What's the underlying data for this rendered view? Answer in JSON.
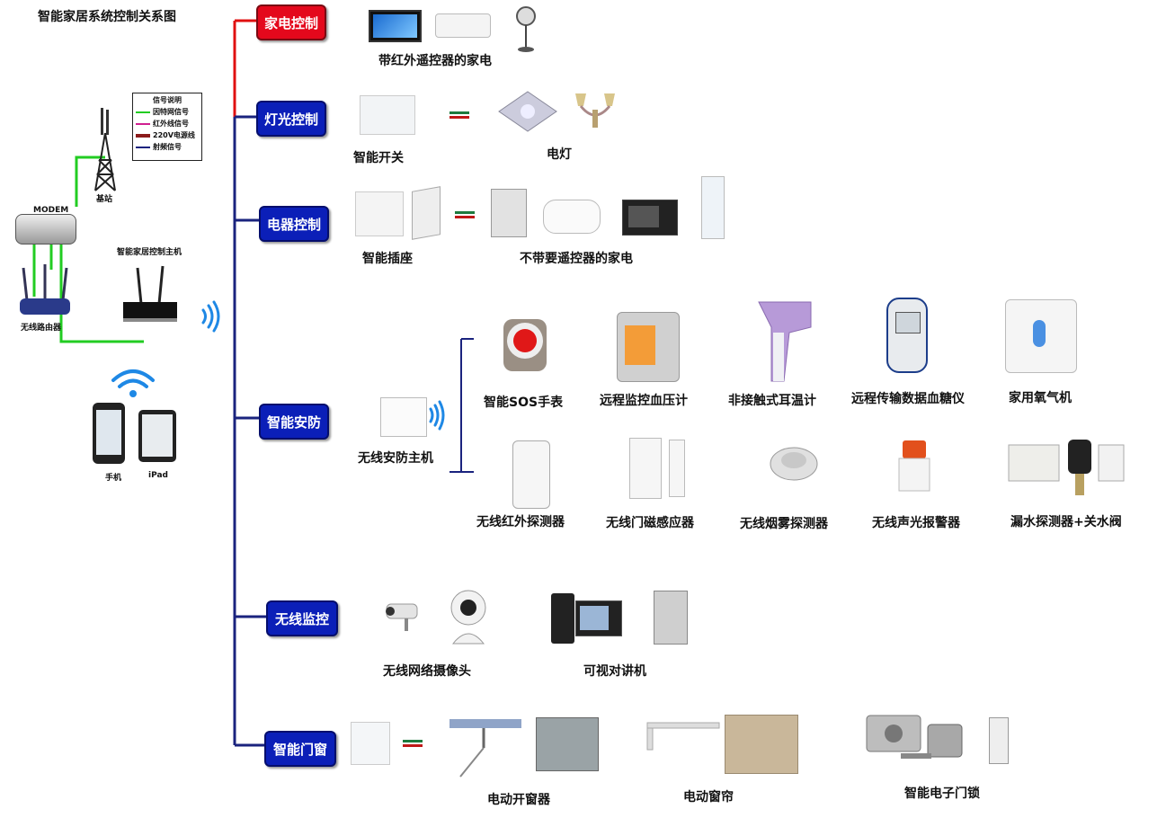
{
  "title": "智能家居系统控制关系图",
  "legend": {
    "title": "信号说明",
    "items": [
      {
        "label": "因特网信号",
        "color": "#22cc22"
      },
      {
        "label": "红外线信号",
        "color": "#d02090"
      },
      {
        "label": "220V电源线",
        "color": "#8b1a1a"
      },
      {
        "label": "射频信号",
        "color": "#1a237e"
      }
    ]
  },
  "left": {
    "base_station": "基站",
    "modem": "MODEM",
    "router": "无线路由器",
    "host": "智能家居控制主机",
    "phone": "手机",
    "ipad": "iPad"
  },
  "categories": [
    "家电控制",
    "灯光控制",
    "电器控制",
    "智能安防",
    "无线监控",
    "智能门窗"
  ],
  "labels": {
    "ir_appliances": "带红外遥控器的家电",
    "smart_switch": "智能开关",
    "lamp": "电灯",
    "smart_socket": "智能插座",
    "non_remote_appliances": "不带要遥控器的家电",
    "security_host": "无线安防主机",
    "sos_watch": "智能SOS手表",
    "bp_monitor": "远程监控血压计",
    "thermometer": "非接触式耳温计",
    "glucose": "远程传输数据血糖仪",
    "oxygen": "家用氧气机",
    "ir_detector": "无线红外探测器",
    "door_sensor": "无线门磁感应器",
    "smoke_detector": "无线烟雾探测器",
    "alarm": "无线声光报警器",
    "water_leak": "漏水探测器+关水阀",
    "camera": "无线网络摄像头",
    "intercom": "可视对讲机",
    "window_opener": "电动开窗器",
    "curtain": "电动窗帘",
    "door_lock": "智能电子门锁"
  },
  "colors": {
    "red_box": "#e4081c",
    "blue_box": "#0b1fb8",
    "trunk_red": "#e01010",
    "trunk_blue": "#1a237e",
    "internet": "#22cc22"
  }
}
